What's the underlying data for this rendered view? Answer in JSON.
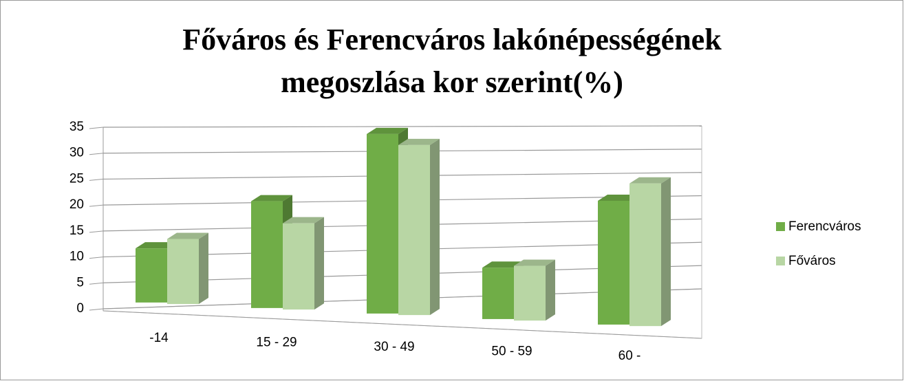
{
  "chart_data": {
    "type": "bar3d",
    "title": [
      "Főváros és Ferencváros lakónépességének",
      "megoszlása kor szerint(%)"
    ],
    "categories": [
      "-14",
      "15 - 29",
      "30 - 49",
      "50 - 59",
      "60 -"
    ],
    "series": [
      {
        "name": "Ferencváros",
        "color": "#70ad47",
        "values": [
          10.5,
          20,
          32.5,
          9,
          21
        ]
      },
      {
        "name": "Főváros",
        "color": "#b8d6a4",
        "values": [
          12.5,
          16,
          30.5,
          9.5,
          24
        ]
      }
    ],
    "ylim": [
      0,
      35
    ],
    "yticks": [
      0,
      5,
      10,
      15,
      20,
      25,
      30,
      35
    ],
    "grid": true,
    "legend": "right"
  }
}
